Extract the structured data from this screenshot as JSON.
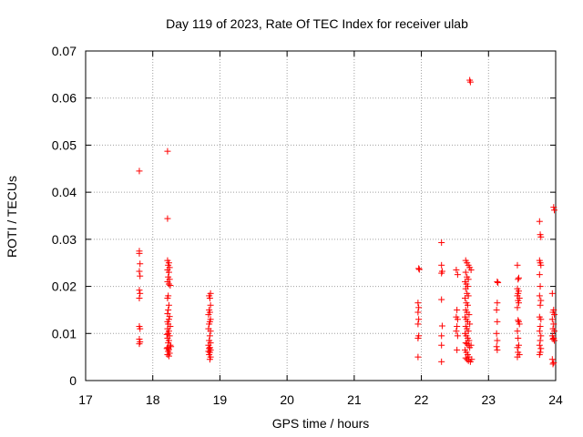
{
  "chart_data": {
    "type": "scatter",
    "title": "Day 119 of 2023, Rate Of TEC Index for receiver ulab",
    "xlabel": "GPS time / hours",
    "ylabel": "ROTI / TECUs",
    "xlim": [
      17,
      24
    ],
    "ylim": [
      0,
      0.07
    ],
    "xticks": [
      "17",
      "18",
      "19",
      "20",
      "21",
      "22",
      "23",
      "24"
    ],
    "yticks": [
      "0",
      "0.01",
      "0.02",
      "0.03",
      "0.04",
      "0.05",
      "0.06",
      "0.07"
    ],
    "grid": true,
    "marker": "plus",
    "color": "#ff0000",
    "series": [
      {
        "points": [
          [
            17.8,
            0.0445
          ],
          [
            17.8,
            0.0275
          ],
          [
            17.8,
            0.027
          ],
          [
            17.81,
            0.0248
          ],
          [
            17.8,
            0.0232
          ],
          [
            17.81,
            0.0222
          ],
          [
            17.8,
            0.0192
          ],
          [
            17.81,
            0.0185
          ],
          [
            17.8,
            0.0175
          ],
          [
            17.8,
            0.0115
          ],
          [
            17.81,
            0.011
          ],
          [
            17.8,
            0.0088
          ],
          [
            17.81,
            0.0082
          ],
          [
            17.8,
            0.0078
          ],
          [
            18.22,
            0.0487
          ],
          [
            18.22,
            0.0344
          ],
          [
            18.22,
            0.0255
          ],
          [
            18.24,
            0.025
          ],
          [
            18.23,
            0.0245
          ],
          [
            18.25,
            0.024
          ],
          [
            18.22,
            0.0235
          ],
          [
            18.24,
            0.023
          ],
          [
            18.23,
            0.022
          ],
          [
            18.25,
            0.0215
          ],
          [
            18.22,
            0.021
          ],
          [
            18.24,
            0.0205
          ],
          [
            18.26,
            0.0202
          ],
          [
            18.23,
            0.018
          ],
          [
            18.22,
            0.0175
          ],
          [
            18.24,
            0.016
          ],
          [
            18.23,
            0.015
          ],
          [
            18.22,
            0.0142
          ],
          [
            18.25,
            0.0136
          ],
          [
            18.24,
            0.013
          ],
          [
            18.22,
            0.0125
          ],
          [
            18.23,
            0.012
          ],
          [
            18.26,
            0.0115
          ],
          [
            18.22,
            0.011
          ],
          [
            18.24,
            0.0105
          ],
          [
            18.23,
            0.01
          ],
          [
            18.25,
            0.0095
          ],
          [
            18.22,
            0.009
          ],
          [
            18.24,
            0.0085
          ],
          [
            18.23,
            0.008
          ],
          [
            18.26,
            0.0075
          ],
          [
            18.22,
            0.007
          ],
          [
            18.24,
            0.0066
          ],
          [
            18.23,
            0.0062
          ],
          [
            18.25,
            0.0058
          ],
          [
            18.22,
            0.0055
          ],
          [
            18.24,
            0.0052
          ],
          [
            18.21,
            0.0068
          ],
          [
            18.27,
            0.0072
          ],
          [
            18.21,
            0.0098
          ],
          [
            18.86,
            0.0185
          ],
          [
            18.84,
            0.018
          ],
          [
            18.85,
            0.0175
          ],
          [
            18.86,
            0.016
          ],
          [
            18.84,
            0.015
          ],
          [
            18.85,
            0.0145
          ],
          [
            18.83,
            0.014
          ],
          [
            18.86,
            0.013
          ],
          [
            18.85,
            0.0125
          ],
          [
            18.84,
            0.012
          ],
          [
            18.83,
            0.011
          ],
          [
            18.86,
            0.0105
          ],
          [
            18.85,
            0.0095
          ],
          [
            18.84,
            0.0085
          ],
          [
            18.86,
            0.008
          ],
          [
            18.83,
            0.0075
          ],
          [
            18.85,
            0.007
          ],
          [
            18.84,
            0.0068
          ],
          [
            18.86,
            0.0065
          ],
          [
            18.83,
            0.0062
          ],
          [
            18.85,
            0.006
          ],
          [
            18.84,
            0.0055
          ],
          [
            18.86,
            0.005
          ],
          [
            18.85,
            0.0045
          ],
          [
            21.96,
            0.0238
          ],
          [
            21.97,
            0.0236
          ],
          [
            21.95,
            0.0165
          ],
          [
            21.96,
            0.0155
          ],
          [
            21.95,
            0.0145
          ],
          [
            21.96,
            0.013
          ],
          [
            21.95,
            0.012
          ],
          [
            21.96,
            0.0095
          ],
          [
            21.95,
            0.009
          ],
          [
            21.95,
            0.005
          ],
          [
            22.3,
            0.0293
          ],
          [
            22.3,
            0.0245
          ],
          [
            22.31,
            0.0232
          ],
          [
            22.3,
            0.0228
          ],
          [
            22.3,
            0.0172
          ],
          [
            22.31,
            0.0116
          ],
          [
            22.3,
            0.0095
          ],
          [
            22.3,
            0.0075
          ],
          [
            22.3,
            0.004
          ],
          [
            22.52,
            0.0235
          ],
          [
            22.54,
            0.0225
          ],
          [
            22.53,
            0.015
          ],
          [
            22.52,
            0.0135
          ],
          [
            22.54,
            0.013
          ],
          [
            22.53,
            0.0115
          ],
          [
            22.52,
            0.0105
          ],
          [
            22.54,
            0.0095
          ],
          [
            22.53,
            0.0065
          ],
          [
            22.72,
            0.0638
          ],
          [
            22.73,
            0.0634
          ],
          [
            22.66,
            0.0255
          ],
          [
            22.68,
            0.025
          ],
          [
            22.7,
            0.0245
          ],
          [
            22.72,
            0.024
          ],
          [
            22.74,
            0.0235
          ],
          [
            22.66,
            0.023
          ],
          [
            22.68,
            0.022
          ],
          [
            22.7,
            0.0215
          ],
          [
            22.65,
            0.021
          ],
          [
            22.67,
            0.0205
          ],
          [
            22.69,
            0.02
          ],
          [
            22.66,
            0.0195
          ],
          [
            22.68,
            0.0185
          ],
          [
            22.7,
            0.018
          ],
          [
            22.65,
            0.0175
          ],
          [
            22.67,
            0.0165
          ],
          [
            22.69,
            0.016
          ],
          [
            22.66,
            0.015
          ],
          [
            22.68,
            0.0145
          ],
          [
            22.71,
            0.014
          ],
          [
            22.65,
            0.0135
          ],
          [
            22.67,
            0.013
          ],
          [
            22.69,
            0.0125
          ],
          [
            22.72,
            0.012
          ],
          [
            22.66,
            0.0115
          ],
          [
            22.68,
            0.011
          ],
          [
            22.7,
            0.0105
          ],
          [
            22.65,
            0.01
          ],
          [
            22.67,
            0.0095
          ],
          [
            22.69,
            0.009
          ],
          [
            22.71,
            0.0085
          ],
          [
            22.66,
            0.008
          ],
          [
            22.68,
            0.0078
          ],
          [
            22.7,
            0.0075
          ],
          [
            22.72,
            0.007
          ],
          [
            22.65,
            0.0065
          ],
          [
            22.67,
            0.006
          ],
          [
            22.69,
            0.0055
          ],
          [
            22.71,
            0.005
          ],
          [
            22.66,
            0.0048
          ],
          [
            22.68,
            0.0045
          ],
          [
            22.7,
            0.0042
          ],
          [
            22.73,
            0.004
          ],
          [
            22.75,
            0.0045
          ],
          [
            22.74,
            0.0075
          ],
          [
            23.13,
            0.021
          ],
          [
            23.14,
            0.0208
          ],
          [
            23.13,
            0.0165
          ],
          [
            23.12,
            0.015
          ],
          [
            23.13,
            0.0125
          ],
          [
            23.12,
            0.01
          ],
          [
            23.13,
            0.0085
          ],
          [
            23.12,
            0.0072
          ],
          [
            23.13,
            0.0065
          ],
          [
            23.43,
            0.0245
          ],
          [
            23.45,
            0.0218
          ],
          [
            23.44,
            0.0215
          ],
          [
            23.43,
            0.0195
          ],
          [
            23.45,
            0.019
          ],
          [
            23.44,
            0.0185
          ],
          [
            23.43,
            0.018
          ],
          [
            23.46,
            0.0175
          ],
          [
            23.44,
            0.017
          ],
          [
            23.45,
            0.0165
          ],
          [
            23.43,
            0.0155
          ],
          [
            23.44,
            0.0128
          ],
          [
            23.45,
            0.0125
          ],
          [
            23.46,
            0.012
          ],
          [
            23.43,
            0.0105
          ],
          [
            23.44,
            0.009
          ],
          [
            23.45,
            0.0075
          ],
          [
            23.43,
            0.007
          ],
          [
            23.44,
            0.006
          ],
          [
            23.46,
            0.0055
          ],
          [
            23.43,
            0.005
          ],
          [
            23.76,
            0.0338
          ],
          [
            23.77,
            0.031
          ],
          [
            23.78,
            0.0305
          ],
          [
            23.76,
            0.0255
          ],
          [
            23.77,
            0.025
          ],
          [
            23.78,
            0.0245
          ],
          [
            23.76,
            0.0225
          ],
          [
            23.77,
            0.02
          ],
          [
            23.76,
            0.018
          ],
          [
            23.78,
            0.017
          ],
          [
            23.77,
            0.016
          ],
          [
            23.76,
            0.0135
          ],
          [
            23.78,
            0.013
          ],
          [
            23.77,
            0.0115
          ],
          [
            23.76,
            0.0105
          ],
          [
            23.78,
            0.0095
          ],
          [
            23.77,
            0.0085
          ],
          [
            23.76,
            0.0075
          ],
          [
            23.78,
            0.0068
          ],
          [
            23.77,
            0.006
          ],
          [
            23.76,
            0.0055
          ],
          [
            23.97,
            0.0368
          ],
          [
            23.98,
            0.0362
          ],
          [
            23.95,
            0.0185
          ],
          [
            23.97,
            0.015
          ],
          [
            23.96,
            0.0145
          ],
          [
            23.98,
            0.014
          ],
          [
            23.95,
            0.013
          ],
          [
            23.97,
            0.012
          ],
          [
            23.96,
            0.011
          ],
          [
            23.98,
            0.0105
          ],
          [
            23.95,
            0.0095
          ],
          [
            23.97,
            0.009
          ],
          [
            23.96,
            0.0088
          ],
          [
            23.98,
            0.0085
          ],
          [
            23.95,
            0.0045
          ],
          [
            23.97,
            0.0038
          ],
          [
            23.96,
            0.0035
          ]
        ]
      }
    ]
  }
}
